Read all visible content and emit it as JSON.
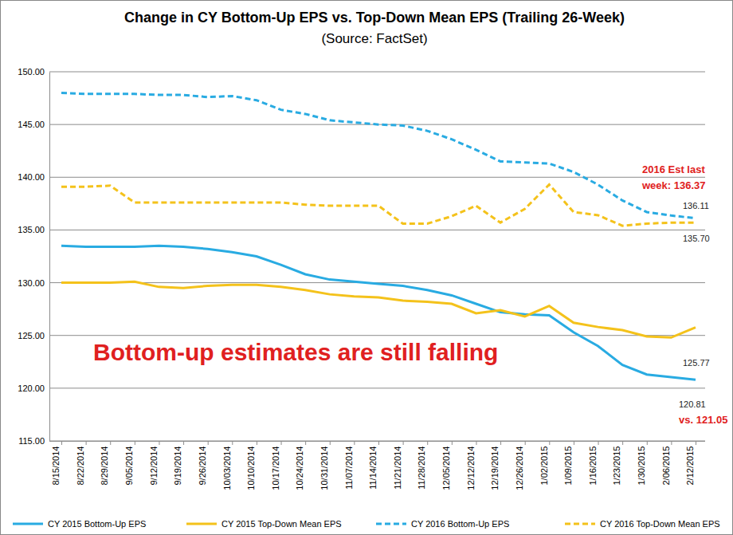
{
  "chart_data": {
    "type": "line",
    "title": "Change in CY Bottom-Up EPS vs. Top-Down Mean EPS (Trailing 26-Week)",
    "subtitle": "(Source: FactSet)",
    "categories": [
      "8/15/2014",
      "8/22/2014",
      "8/29/2014",
      "9/05/2014",
      "9/12/2014",
      "9/19/2014",
      "9/26/2014",
      "10/03/2014",
      "10/10/2014",
      "10/17/2014",
      "10/24/2014",
      "10/31/2014",
      "11/07/2014",
      "11/14/2014",
      "11/21/2014",
      "11/28/2014",
      "12/05/2014",
      "12/12/2014",
      "12/19/2014",
      "12/26/2014",
      "1/02/2015",
      "1/09/2015",
      "1/16/2015",
      "1/23/2015",
      "1/30/2015",
      "2/06/2015",
      "2/12/2015"
    ],
    "series": [
      {
        "name": "CY 2015 Bottom-Up EPS",
        "color": "#29abe2",
        "line_style": "solid",
        "values": [
          133.5,
          133.4,
          133.4,
          133.4,
          133.5,
          133.4,
          133.2,
          132.9,
          132.5,
          131.7,
          130.8,
          130.3,
          130.1,
          129.9,
          129.7,
          129.3,
          128.8,
          128.0,
          127.2,
          127.0,
          126.9,
          125.3,
          124.0,
          122.2,
          121.3,
          121.05,
          120.81
        ]
      },
      {
        "name": "CY 2015 Top-Down Mean EPS",
        "color": "#f4c21b",
        "line_style": "solid",
        "values": [
          130.0,
          130.0,
          130.0,
          130.1,
          129.6,
          129.5,
          129.7,
          129.8,
          129.8,
          129.6,
          129.3,
          128.9,
          128.7,
          128.6,
          128.3,
          128.2,
          128.0,
          127.1,
          127.4,
          126.8,
          127.8,
          126.2,
          125.8,
          125.5,
          124.9,
          124.8,
          125.77
        ]
      },
      {
        "name": "CY 2016 Bottom-Up EPS",
        "color": "#29abe2",
        "line_style": "dashed",
        "values": [
          148.0,
          147.9,
          147.9,
          147.9,
          147.8,
          147.8,
          147.6,
          147.7,
          147.3,
          146.4,
          146.0,
          145.4,
          145.2,
          145.0,
          144.9,
          144.4,
          143.6,
          142.6,
          141.5,
          141.4,
          141.3,
          140.5,
          139.3,
          137.8,
          136.7,
          136.37,
          136.11
        ]
      },
      {
        "name": "CY 2016 Top-Down Mean EPS",
        "color": "#f4c21b",
        "line_style": "dashed",
        "values": [
          139.1,
          139.1,
          139.2,
          137.6,
          137.6,
          137.6,
          137.6,
          137.6,
          137.6,
          137.6,
          137.4,
          137.3,
          137.3,
          137.3,
          135.6,
          135.6,
          136.3,
          137.3,
          135.7,
          137.0,
          139.3,
          136.7,
          136.4,
          135.4,
          135.6,
          135.7,
          135.7
        ]
      }
    ],
    "ylim": [
      115,
      150
    ],
    "yticks": [
      {
        "value": 115,
        "label": "115.00"
      },
      {
        "value": 120,
        "label": "120.00"
      },
      {
        "value": 125,
        "label": "125.00"
      },
      {
        "value": 130,
        "label": "130.00"
      },
      {
        "value": 135,
        "label": "135.00"
      },
      {
        "value": 140,
        "label": "140.00"
      },
      {
        "value": 145,
        "label": "145.00"
      },
      {
        "value": 150,
        "label": "150.00"
      }
    ],
    "grid": true,
    "legend": "bottom",
    "annotations": [
      {
        "text": [
          "2016 Est last",
          "week: 136.37"
        ],
        "color": "#e02020"
      },
      {
        "text": [
          "136.11"
        ],
        "color": "#222222"
      },
      {
        "text": [
          "135.70"
        ],
        "color": "#222222"
      },
      {
        "text": [
          "125.77"
        ],
        "color": "#222222"
      },
      {
        "text": [
          "120.81"
        ],
        "color": "#222222"
      },
      {
        "text": [
          "vs. 121.05"
        ],
        "color": "#e02020"
      },
      {
        "text": [
          "Bottom-up estimates are still falling"
        ],
        "color": "#e02020"
      }
    ]
  }
}
